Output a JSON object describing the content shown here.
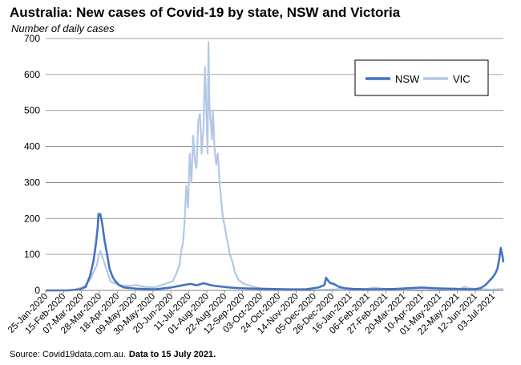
{
  "title": "Australia: New cases of Covid-19 by state, NSW and Victoria",
  "source": {
    "text": "Source: Covid19data.com.au.",
    "note": "Data to 15 July 2021."
  },
  "colors": {
    "NSW": "#4472c4",
    "VIC": "#b4c7e7",
    "grid": "#808080"
  },
  "chart_data": {
    "type": "line",
    "title": "Australia: New cases of Covid-19 by state, NSW and Victoria",
    "ylabel": "Number of daily cases",
    "xlabel": "",
    "ylim": [
      0,
      700
    ],
    "yticks": [
      0,
      100,
      200,
      300,
      400,
      500,
      600,
      700
    ],
    "xlim": [
      "2020-01-25",
      "2021-07-15"
    ],
    "xtick_labels": [
      "25-Jan-2020",
      "15-Feb-2020",
      "07-Mar-2020",
      "28-Mar-2020",
      "18-Apr-2020",
      "09-May-2020",
      "30-May-2020",
      "20-Jun-2020",
      "11-Jul-2020",
      "01-Aug-2020",
      "22-Aug-2020",
      "12-Sep-2020",
      "03-Oct-2020",
      "24-Oct-2020",
      "14-Nov-2020",
      "05-Dec-2020",
      "26-Dec-2020",
      "16-Jan-2021",
      "06-Feb-2021",
      "27-Feb-2021",
      "20-Mar-2021",
      "10-Apr-2021",
      "01-May-2021",
      "22-May-2021",
      "12-Jun-2021",
      "03-Jul-2021"
    ],
    "grid": true,
    "legend": "top-right",
    "series": [
      {
        "name": "NSW",
        "x": [
          "2020-01-25",
          "2020-02-20",
          "2020-03-05",
          "2020-03-12",
          "2020-03-17",
          "2020-03-21",
          "2020-03-24",
          "2020-03-26",
          "2020-03-27",
          "2020-03-29",
          "2020-03-31",
          "2020-04-03",
          "2020-04-06",
          "2020-04-09",
          "2020-04-13",
          "2020-04-16",
          "2020-04-20",
          "2020-04-26",
          "2020-05-10",
          "2020-06-01",
          "2020-06-20",
          "2020-07-05",
          "2020-07-13",
          "2020-07-20",
          "2020-07-28",
          "2020-08-05",
          "2020-08-12",
          "2020-08-20",
          "2020-08-28",
          "2020-09-10",
          "2020-09-25",
          "2020-10-15",
          "2020-11-05",
          "2020-11-25",
          "2020-12-10",
          "2020-12-17",
          "2020-12-19",
          "2020-12-21",
          "2020-12-24",
          "2020-12-28",
          "2021-01-03",
          "2021-01-10",
          "2021-01-20",
          "2021-02-10",
          "2021-03-10",
          "2021-03-25",
          "2021-04-10",
          "2021-04-25",
          "2021-05-10",
          "2021-05-25",
          "2021-06-10",
          "2021-06-18",
          "2021-06-24",
          "2021-06-28",
          "2021-07-02",
          "2021-07-05",
          "2021-07-08",
          "2021-07-10",
          "2021-07-12",
          "2021-07-14",
          "2021-07-15"
        ],
        "values": [
          0,
          0,
          3,
          10,
          40,
          80,
          130,
          175,
          212,
          212,
          190,
          140,
          100,
          60,
          35,
          25,
          15,
          8,
          5,
          3,
          8,
          15,
          18,
          14,
          20,
          15,
          12,
          10,
          8,
          6,
          5,
          4,
          3,
          3,
          8,
          15,
          35,
          28,
          20,
          18,
          10,
          6,
          4,
          3,
          4,
          6,
          8,
          6,
          5,
          4,
          3,
          6,
          15,
          25,
          35,
          45,
          60,
          85,
          118,
          95,
          78
        ]
      },
      {
        "name": "VIC",
        "x": [
          "2020-01-25",
          "2020-02-25",
          "2020-03-10",
          "2020-03-17",
          "2020-03-22",
          "2020-03-25",
          "2020-03-27",
          "2020-03-29",
          "2020-04-01",
          "2020-04-05",
          "2020-04-10",
          "2020-04-20",
          "2020-05-01",
          "2020-05-10",
          "2020-05-20",
          "2020-06-01",
          "2020-06-15",
          "2020-06-22",
          "2020-06-26",
          "2020-06-30",
          "2020-07-02",
          "2020-07-04",
          "2020-07-06",
          "2020-07-08",
          "2020-07-10",
          "2020-07-12",
          "2020-07-14",
          "2020-07-16",
          "2020-07-18",
          "2020-07-20",
          "2020-07-22",
          "2020-07-24",
          "2020-07-26",
          "2020-07-28",
          "2020-07-30",
          "2020-08-01",
          "2020-08-02",
          "2020-08-03",
          "2020-08-04",
          "2020-08-05",
          "2020-08-06",
          "2020-08-07",
          "2020-08-08",
          "2020-08-09",
          "2020-08-10",
          "2020-08-12",
          "2020-08-14",
          "2020-08-16",
          "2020-08-18",
          "2020-08-20",
          "2020-08-22",
          "2020-08-24",
          "2020-08-26",
          "2020-08-28",
          "2020-08-31",
          "2020-09-03",
          "2020-09-07",
          "2020-09-12",
          "2020-09-18",
          "2020-09-25",
          "2020-10-05",
          "2020-10-15",
          "2020-11-01",
          "2020-12-01",
          "2020-12-31",
          "2021-01-05",
          "2021-02-01",
          "2021-02-13",
          "2021-03-01",
          "2021-04-01",
          "2021-05-01",
          "2021-05-25",
          "2021-05-30",
          "2021-06-05",
          "2021-06-15",
          "2021-07-01",
          "2021-07-15"
        ],
        "values": [
          0,
          0,
          10,
          30,
          55,
          70,
          95,
          110,
          90,
          60,
          25,
          15,
          12,
          15,
          10,
          8,
          20,
          25,
          45,
          70,
          110,
          130,
          190,
          290,
          230,
          380,
          300,
          430,
          360,
          340,
          470,
          490,
          380,
          450,
          620,
          460,
          380,
          690,
          520,
          480,
          460,
          420,
          500,
          460,
          400,
          350,
          380,
          300,
          250,
          200,
          180,
          150,
          130,
          100,
          80,
          50,
          30,
          20,
          15,
          10,
          5,
          3,
          1,
          0,
          3,
          5,
          2,
          8,
          3,
          1,
          0,
          3,
          10,
          6,
          4,
          2,
          4
        ]
      }
    ]
  }
}
